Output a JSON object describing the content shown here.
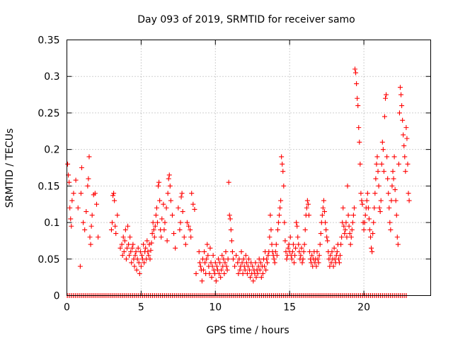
{
  "chart_data": {
    "type": "scatter",
    "title": "Day 093 of 2019, SRMTID for receiver samo",
    "xlabel": "GPS time / hours",
    "ylabel": "SRMTID / TECUs",
    "xlim": [
      0,
      24.5
    ],
    "ylim": [
      0,
      0.35
    ],
    "x_ticks": [
      0,
      5,
      10,
      15,
      20
    ],
    "x_tick_labels": [
      "0",
      "5",
      "10",
      "15",
      "20"
    ],
    "y_ticks": [
      0,
      0.05,
      0.1,
      0.15,
      0.2,
      0.25,
      0.3,
      0.35
    ],
    "y_tick_labels": [
      "0",
      "0.05",
      "0.1",
      "0.15",
      "0.2",
      "0.25",
      "0.3",
      "0.35"
    ],
    "grid": true,
    "marker": "+",
    "color": "#ff0000",
    "zero_band_range": [
      0,
      22.9
    ],
    "points": [
      [
        0.05,
        0.18
      ],
      [
        0.1,
        0.165
      ],
      [
        0.15,
        0.155
      ],
      [
        0.2,
        0.12
      ],
      [
        0.25,
        0.105
      ],
      [
        0.3,
        0.095
      ],
      [
        0.35,
        0.13
      ],
      [
        0.45,
        0.14
      ],
      [
        0.6,
        0.158
      ],
      [
        0.75,
        0.12
      ],
      [
        0.9,
        0.04
      ],
      [
        0.95,
        0.14
      ],
      [
        1.0,
        0.175
      ],
      [
        1.1,
        0.1
      ],
      [
        1.2,
        0.09
      ],
      [
        1.3,
        0.115
      ],
      [
        1.4,
        0.15
      ],
      [
        1.45,
        0.16
      ],
      [
        1.5,
        0.19
      ],
      [
        1.55,
        0.08
      ],
      [
        1.6,
        0.07
      ],
      [
        1.65,
        0.095
      ],
      [
        1.7,
        0.11
      ],
      [
        1.8,
        0.138
      ],
      [
        1.9,
        0.14
      ],
      [
        2.0,
        0.125
      ],
      [
        2.1,
        0.08
      ],
      [
        3.0,
        0.09
      ],
      [
        3.05,
        0.1
      ],
      [
        3.1,
        0.137
      ],
      [
        3.15,
        0.14
      ],
      [
        3.2,
        0.13
      ],
      [
        3.25,
        0.095
      ],
      [
        3.3,
        0.085
      ],
      [
        3.4,
        0.11
      ],
      [
        3.6,
        0.065
      ],
      [
        3.7,
        0.07
      ],
      [
        3.75,
        0.055
      ],
      [
        3.8,
        0.08
      ],
      [
        3.85,
        0.06
      ],
      [
        3.9,
        0.075
      ],
      [
        3.95,
        0.09
      ],
      [
        4.0,
        0.05
      ],
      [
        4.05,
        0.065
      ],
      [
        4.1,
        0.095
      ],
      [
        4.15,
        0.07
      ],
      [
        4.2,
        0.055
      ],
      [
        4.25,
        0.08
      ],
      [
        4.3,
        0.06
      ],
      [
        4.35,
        0.045
      ],
      [
        4.4,
        0.065
      ],
      [
        4.45,
        0.07
      ],
      [
        4.5,
        0.05
      ],
      [
        4.55,
        0.04
      ],
      [
        4.6,
        0.055
      ],
      [
        4.65,
        0.06
      ],
      [
        4.7,
        0.035
      ],
      [
        4.75,
        0.05
      ],
      [
        4.8,
        0.065
      ],
      [
        4.85,
        0.045
      ],
      [
        4.9,
        0.03
      ],
      [
        4.95,
        0.06
      ],
      [
        5.0,
        0.04
      ],
      [
        5.05,
        0.055
      ],
      [
        5.1,
        0.05
      ],
      [
        5.15,
        0.07
      ],
      [
        5.2,
        0.045
      ],
      [
        5.25,
        0.06
      ],
      [
        5.3,
        0.065
      ],
      [
        5.35,
        0.05
      ],
      [
        5.4,
        0.075
      ],
      [
        5.45,
        0.06
      ],
      [
        5.5,
        0.055
      ],
      [
        5.55,
        0.07
      ],
      [
        5.6,
        0.05
      ],
      [
        5.65,
        0.062
      ],
      [
        5.7,
        0.072
      ],
      [
        5.75,
        0.085
      ],
      [
        5.8,
        0.1
      ],
      [
        5.85,
        0.09
      ],
      [
        5.9,
        0.08
      ],
      [
        5.95,
        0.095
      ],
      [
        6.0,
        0.11
      ],
      [
        6.05,
        0.12
      ],
      [
        6.1,
        0.1
      ],
      [
        6.15,
        0.15
      ],
      [
        6.2,
        0.155
      ],
      [
        6.25,
        0.13
      ],
      [
        6.3,
        0.09
      ],
      [
        6.35,
        0.08
      ],
      [
        6.4,
        0.105
      ],
      [
        6.5,
        0.125
      ],
      [
        6.55,
        0.09
      ],
      [
        6.6,
        0.1
      ],
      [
        6.7,
        0.12
      ],
      [
        6.75,
        0.075
      ],
      [
        6.8,
        0.14
      ],
      [
        6.85,
        0.16
      ],
      [
        6.9,
        0.165
      ],
      [
        6.95,
        0.15
      ],
      [
        7.0,
        0.13
      ],
      [
        7.1,
        0.11
      ],
      [
        7.2,
        0.085
      ],
      [
        7.3,
        0.065
      ],
      [
        7.5,
        0.12
      ],
      [
        7.6,
        0.09
      ],
      [
        7.65,
        0.1
      ],
      [
        7.7,
        0.135
      ],
      [
        7.75,
        0.14
      ],
      [
        7.8,
        0.115
      ],
      [
        7.9,
        0.08
      ],
      [
        8.0,
        0.07
      ],
      [
        8.1,
        0.1
      ],
      [
        8.2,
        0.095
      ],
      [
        8.3,
        0.09
      ],
      [
        8.35,
        0.08
      ],
      [
        8.4,
        0.14
      ],
      [
        8.5,
        0.125
      ],
      [
        8.6,
        0.118
      ],
      [
        8.7,
        0.03
      ],
      [
        8.9,
        0.06
      ],
      [
        8.95,
        0.045
      ],
      [
        9.0,
        0.04
      ],
      [
        9.05,
        0.035
      ],
      [
        9.1,
        0.02
      ],
      [
        9.15,
        0.05
      ],
      [
        9.2,
        0.035
      ],
      [
        9.25,
        0.06
      ],
      [
        9.3,
        0.045
      ],
      [
        9.35,
        0.03
      ],
      [
        9.4,
        0.05
      ],
      [
        9.45,
        0.07
      ],
      [
        9.5,
        0.055
      ],
      [
        9.55,
        0.04
      ],
      [
        9.6,
        0.03
      ],
      [
        9.65,
        0.065
      ],
      [
        9.7,
        0.045
      ],
      [
        9.75,
        0.025
      ],
      [
        9.8,
        0.04
      ],
      [
        9.85,
        0.055
      ],
      [
        9.9,
        0.035
      ],
      [
        9.95,
        0.03
      ],
      [
        10.0,
        0.045
      ],
      [
        10.05,
        0.02
      ],
      [
        10.1,
        0.04
      ],
      [
        10.15,
        0.035
      ],
      [
        10.2,
        0.05
      ],
      [
        10.25,
        0.03
      ],
      [
        10.3,
        0.045
      ],
      [
        10.35,
        0.025
      ],
      [
        10.4,
        0.035
      ],
      [
        10.45,
        0.055
      ],
      [
        10.5,
        0.04
      ],
      [
        10.55,
        0.05
      ],
      [
        10.6,
        0.03
      ],
      [
        10.65,
        0.045
      ],
      [
        10.7,
        0.06
      ],
      [
        10.75,
        0.04
      ],
      [
        10.8,
        0.035
      ],
      [
        10.85,
        0.05
      ],
      [
        10.9,
        0.155
      ],
      [
        10.95,
        0.11
      ],
      [
        11.0,
        0.105
      ],
      [
        11.05,
        0.09
      ],
      [
        11.1,
        0.075
      ],
      [
        11.15,
        0.06
      ],
      [
        11.2,
        0.05
      ],
      [
        11.3,
        0.04
      ],
      [
        11.4,
        0.055
      ],
      [
        11.5,
        0.045
      ],
      [
        11.55,
        0.03
      ],
      [
        11.6,
        0.05
      ],
      [
        11.65,
        0.035
      ],
      [
        11.7,
        0.04
      ],
      [
        11.75,
        0.06
      ],
      [
        11.8,
        0.045
      ],
      [
        11.85,
        0.03
      ],
      [
        11.9,
        0.05
      ],
      [
        11.95,
        0.04
      ],
      [
        12.0,
        0.035
      ],
      [
        12.05,
        0.055
      ],
      [
        12.1,
        0.045
      ],
      [
        12.15,
        0.03
      ],
      [
        12.2,
        0.04
      ],
      [
        12.25,
        0.05
      ],
      [
        12.3,
        0.035
      ],
      [
        12.35,
        0.025
      ],
      [
        12.4,
        0.045
      ],
      [
        12.45,
        0.03
      ],
      [
        12.5,
        0.04
      ],
      [
        12.55,
        0.02
      ],
      [
        12.6,
        0.035
      ],
      [
        12.65,
        0.03
      ],
      [
        12.7,
        0.045
      ],
      [
        12.75,
        0.025
      ],
      [
        12.8,
        0.035
      ],
      [
        12.85,
        0.03
      ],
      [
        12.9,
        0.04
      ],
      [
        12.95,
        0.05
      ],
      [
        13.0,
        0.035
      ],
      [
        13.05,
        0.045
      ],
      [
        13.1,
        0.025
      ],
      [
        13.15,
        0.04
      ],
      [
        13.2,
        0.03
      ],
      [
        13.25,
        0.05
      ],
      [
        13.3,
        0.04
      ],
      [
        13.35,
        0.06
      ],
      [
        13.4,
        0.035
      ],
      [
        13.45,
        0.05
      ],
      [
        13.5,
        0.045
      ],
      [
        13.55,
        0.055
      ],
      [
        13.6,
        0.06
      ],
      [
        13.65,
        0.08
      ],
      [
        13.7,
        0.11
      ],
      [
        13.75,
        0.09
      ],
      [
        13.8,
        0.07
      ],
      [
        13.85,
        0.06
      ],
      [
        13.9,
        0.055
      ],
      [
        13.95,
        0.05
      ],
      [
        14.0,
        0.045
      ],
      [
        14.05,
        0.06
      ],
      [
        14.1,
        0.07
      ],
      [
        14.15,
        0.055
      ],
      [
        14.2,
        0.09
      ],
      [
        14.25,
        0.1
      ],
      [
        14.3,
        0.11
      ],
      [
        14.35,
        0.12
      ],
      [
        14.4,
        0.13
      ],
      [
        14.45,
        0.19
      ],
      [
        14.5,
        0.18
      ],
      [
        14.55,
        0.17
      ],
      [
        14.6,
        0.15
      ],
      [
        14.65,
        0.1
      ],
      [
        14.7,
        0.075
      ],
      [
        14.75,
        0.06
      ],
      [
        14.8,
        0.05
      ],
      [
        14.85,
        0.055
      ],
      [
        14.9,
        0.065
      ],
      [
        14.95,
        0.07
      ],
      [
        15.0,
        0.06
      ],
      [
        15.05,
        0.08
      ],
      [
        15.1,
        0.055
      ],
      [
        15.15,
        0.05
      ],
      [
        15.2,
        0.06
      ],
      [
        15.25,
        0.07
      ],
      [
        15.3,
        0.045
      ],
      [
        15.35,
        0.055
      ],
      [
        15.4,
        0.065
      ],
      [
        15.45,
        0.1
      ],
      [
        15.5,
        0.095
      ],
      [
        15.55,
        0.08
      ],
      [
        15.6,
        0.07
      ],
      [
        15.65,
        0.06
      ],
      [
        15.7,
        0.05
      ],
      [
        15.75,
        0.055
      ],
      [
        15.8,
        0.065
      ],
      [
        15.85,
        0.045
      ],
      [
        15.9,
        0.05
      ],
      [
        15.95,
        0.06
      ],
      [
        16.0,
        0.07
      ],
      [
        16.05,
        0.09
      ],
      [
        16.1,
        0.11
      ],
      [
        16.15,
        0.12
      ],
      [
        16.2,
        0.13
      ],
      [
        16.25,
        0.125
      ],
      [
        16.3,
        0.11
      ],
      [
        16.35,
        0.06
      ],
      [
        16.4,
        0.05
      ],
      [
        16.45,
        0.045
      ],
      [
        16.5,
        0.055
      ],
      [
        16.55,
        0.04
      ],
      [
        16.6,
        0.05
      ],
      [
        16.65,
        0.06
      ],
      [
        16.7,
        0.045
      ],
      [
        16.75,
        0.05
      ],
      [
        16.8,
        0.04
      ],
      [
        16.85,
        0.06
      ],
      [
        16.9,
        0.05
      ],
      [
        16.95,
        0.045
      ],
      [
        17.0,
        0.055
      ],
      [
        17.05,
        0.07
      ],
      [
        17.1,
        0.085
      ],
      [
        17.15,
        0.1
      ],
      [
        17.2,
        0.11
      ],
      [
        17.25,
        0.12
      ],
      [
        17.3,
        0.13
      ],
      [
        17.35,
        0.115
      ],
      [
        17.4,
        0.1
      ],
      [
        17.45,
        0.09
      ],
      [
        17.5,
        0.08
      ],
      [
        17.55,
        0.075
      ],
      [
        17.6,
        0.06
      ],
      [
        17.65,
        0.05
      ],
      [
        17.7,
        0.04
      ],
      [
        17.75,
        0.055
      ],
      [
        17.8,
        0.045
      ],
      [
        17.85,
        0.06
      ],
      [
        17.9,
        0.05
      ],
      [
        17.95,
        0.04
      ],
      [
        18.0,
        0.065
      ],
      [
        18.05,
        0.05
      ],
      [
        18.1,
        0.045
      ],
      [
        18.15,
        0.055
      ],
      [
        18.2,
        0.06
      ],
      [
        18.25,
        0.07
      ],
      [
        18.3,
        0.05
      ],
      [
        18.35,
        0.045
      ],
      [
        18.4,
        0.055
      ],
      [
        18.45,
        0.07
      ],
      [
        18.5,
        0.08
      ],
      [
        18.55,
        0.1
      ],
      [
        18.6,
        0.12
      ],
      [
        18.65,
        0.095
      ],
      [
        18.7,
        0.085
      ],
      [
        18.75,
        0.09
      ],
      [
        18.8,
        0.1
      ],
      [
        18.85,
        0.08
      ],
      [
        18.9,
        0.15
      ],
      [
        18.95,
        0.11
      ],
      [
        19.0,
        0.095
      ],
      [
        19.05,
        0.085
      ],
      [
        19.1,
        0.07
      ],
      [
        19.15,
        0.08
      ],
      [
        19.2,
        0.09
      ],
      [
        19.25,
        0.1
      ],
      [
        19.3,
        0.11
      ],
      [
        19.35,
        0.12
      ],
      [
        19.4,
        0.31
      ],
      [
        19.45,
        0.305
      ],
      [
        19.5,
        0.29
      ],
      [
        19.55,
        0.27
      ],
      [
        19.6,
        0.26
      ],
      [
        19.65,
        0.23
      ],
      [
        19.7,
        0.21
      ],
      [
        19.75,
        0.18
      ],
      [
        19.8,
        0.14
      ],
      [
        19.85,
        0.13
      ],
      [
        19.9,
        0.125
      ],
      [
        19.95,
        0.1
      ],
      [
        20.0,
        0.09
      ],
      [
        20.05,
        0.1
      ],
      [
        20.1,
        0.11
      ],
      [
        20.15,
        0.12
      ],
      [
        20.2,
        0.13
      ],
      [
        20.25,
        0.14
      ],
      [
        20.3,
        0.12
      ],
      [
        20.35,
        0.105
      ],
      [
        20.4,
        0.09
      ],
      [
        20.45,
        0.08
      ],
      [
        20.5,
        0.065
      ],
      [
        20.55,
        0.06
      ],
      [
        20.6,
        0.085
      ],
      [
        20.65,
        0.1
      ],
      [
        20.7,
        0.12
      ],
      [
        20.75,
        0.14
      ],
      [
        20.8,
        0.16
      ],
      [
        20.85,
        0.18
      ],
      [
        20.9,
        0.19
      ],
      [
        20.95,
        0.17
      ],
      [
        21.0,
        0.15
      ],
      [
        21.05,
        0.12
      ],
      [
        21.1,
        0.115
      ],
      [
        21.15,
        0.13
      ],
      [
        21.2,
        0.18
      ],
      [
        21.25,
        0.21
      ],
      [
        21.3,
        0.2
      ],
      [
        21.35,
        0.17
      ],
      [
        21.4,
        0.245
      ],
      [
        21.45,
        0.27
      ],
      [
        21.5,
        0.275
      ],
      [
        21.55,
        0.19
      ],
      [
        21.6,
        0.16
      ],
      [
        21.65,
        0.14
      ],
      [
        21.7,
        0.12
      ],
      [
        21.75,
        0.1
      ],
      [
        21.8,
        0.09
      ],
      [
        21.85,
        0.13
      ],
      [
        21.9,
        0.15
      ],
      [
        21.95,
        0.17
      ],
      [
        22.0,
        0.16
      ],
      [
        22.05,
        0.19
      ],
      [
        22.1,
        0.145
      ],
      [
        22.15,
        0.13
      ],
      [
        22.2,
        0.11
      ],
      [
        22.25,
        0.08
      ],
      [
        22.3,
        0.07
      ],
      [
        22.35,
        0.18
      ],
      [
        22.4,
        0.25
      ],
      [
        22.45,
        0.285
      ],
      [
        22.5,
        0.275
      ],
      [
        22.55,
        0.26
      ],
      [
        22.6,
        0.24
      ],
      [
        22.65,
        0.22
      ],
      [
        22.7,
        0.205
      ],
      [
        22.75,
        0.19
      ],
      [
        22.8,
        0.17
      ],
      [
        22.85,
        0.23
      ],
      [
        22.9,
        0.215
      ],
      [
        22.95,
        0.18
      ],
      [
        23.0,
        0.14
      ],
      [
        23.05,
        0.13
      ]
    ]
  }
}
